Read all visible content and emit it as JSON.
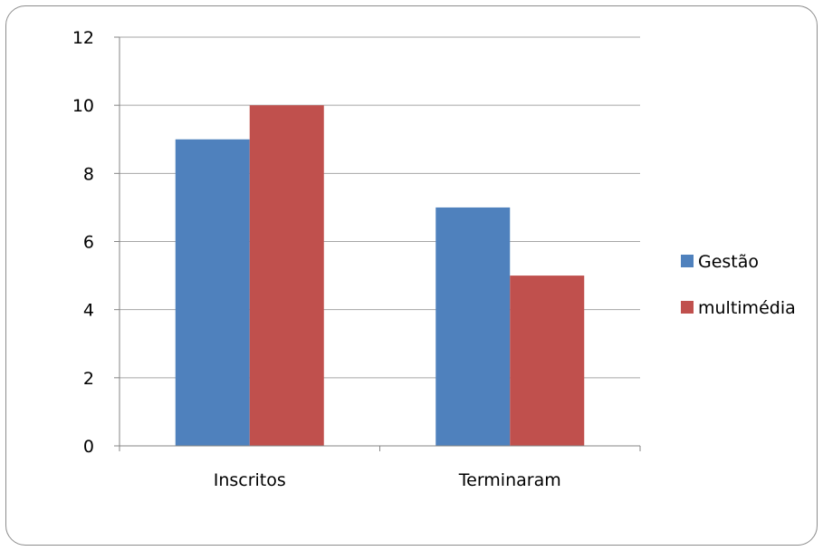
{
  "chart_data": {
    "type": "bar",
    "title": "",
    "xlabel": "",
    "ylabel": "",
    "categories": [
      "Inscritos",
      "Terminaram"
    ],
    "series": [
      {
        "name": "Gestão",
        "values": [
          9,
          7
        ],
        "color": "#4F81BD"
      },
      {
        "name": "multimédia",
        "values": [
          10,
          5
        ],
        "color": "#C0504D"
      }
    ],
    "ylim": [
      0,
      12
    ],
    "yticks": [
      "0",
      "2",
      "4",
      "6",
      "8",
      "10",
      "12"
    ],
    "grid": true,
    "legend_position": "right",
    "colors": {
      "gridline": "#A6A6A6",
      "axis": "#868686",
      "border": "#8C8C8C"
    }
  }
}
